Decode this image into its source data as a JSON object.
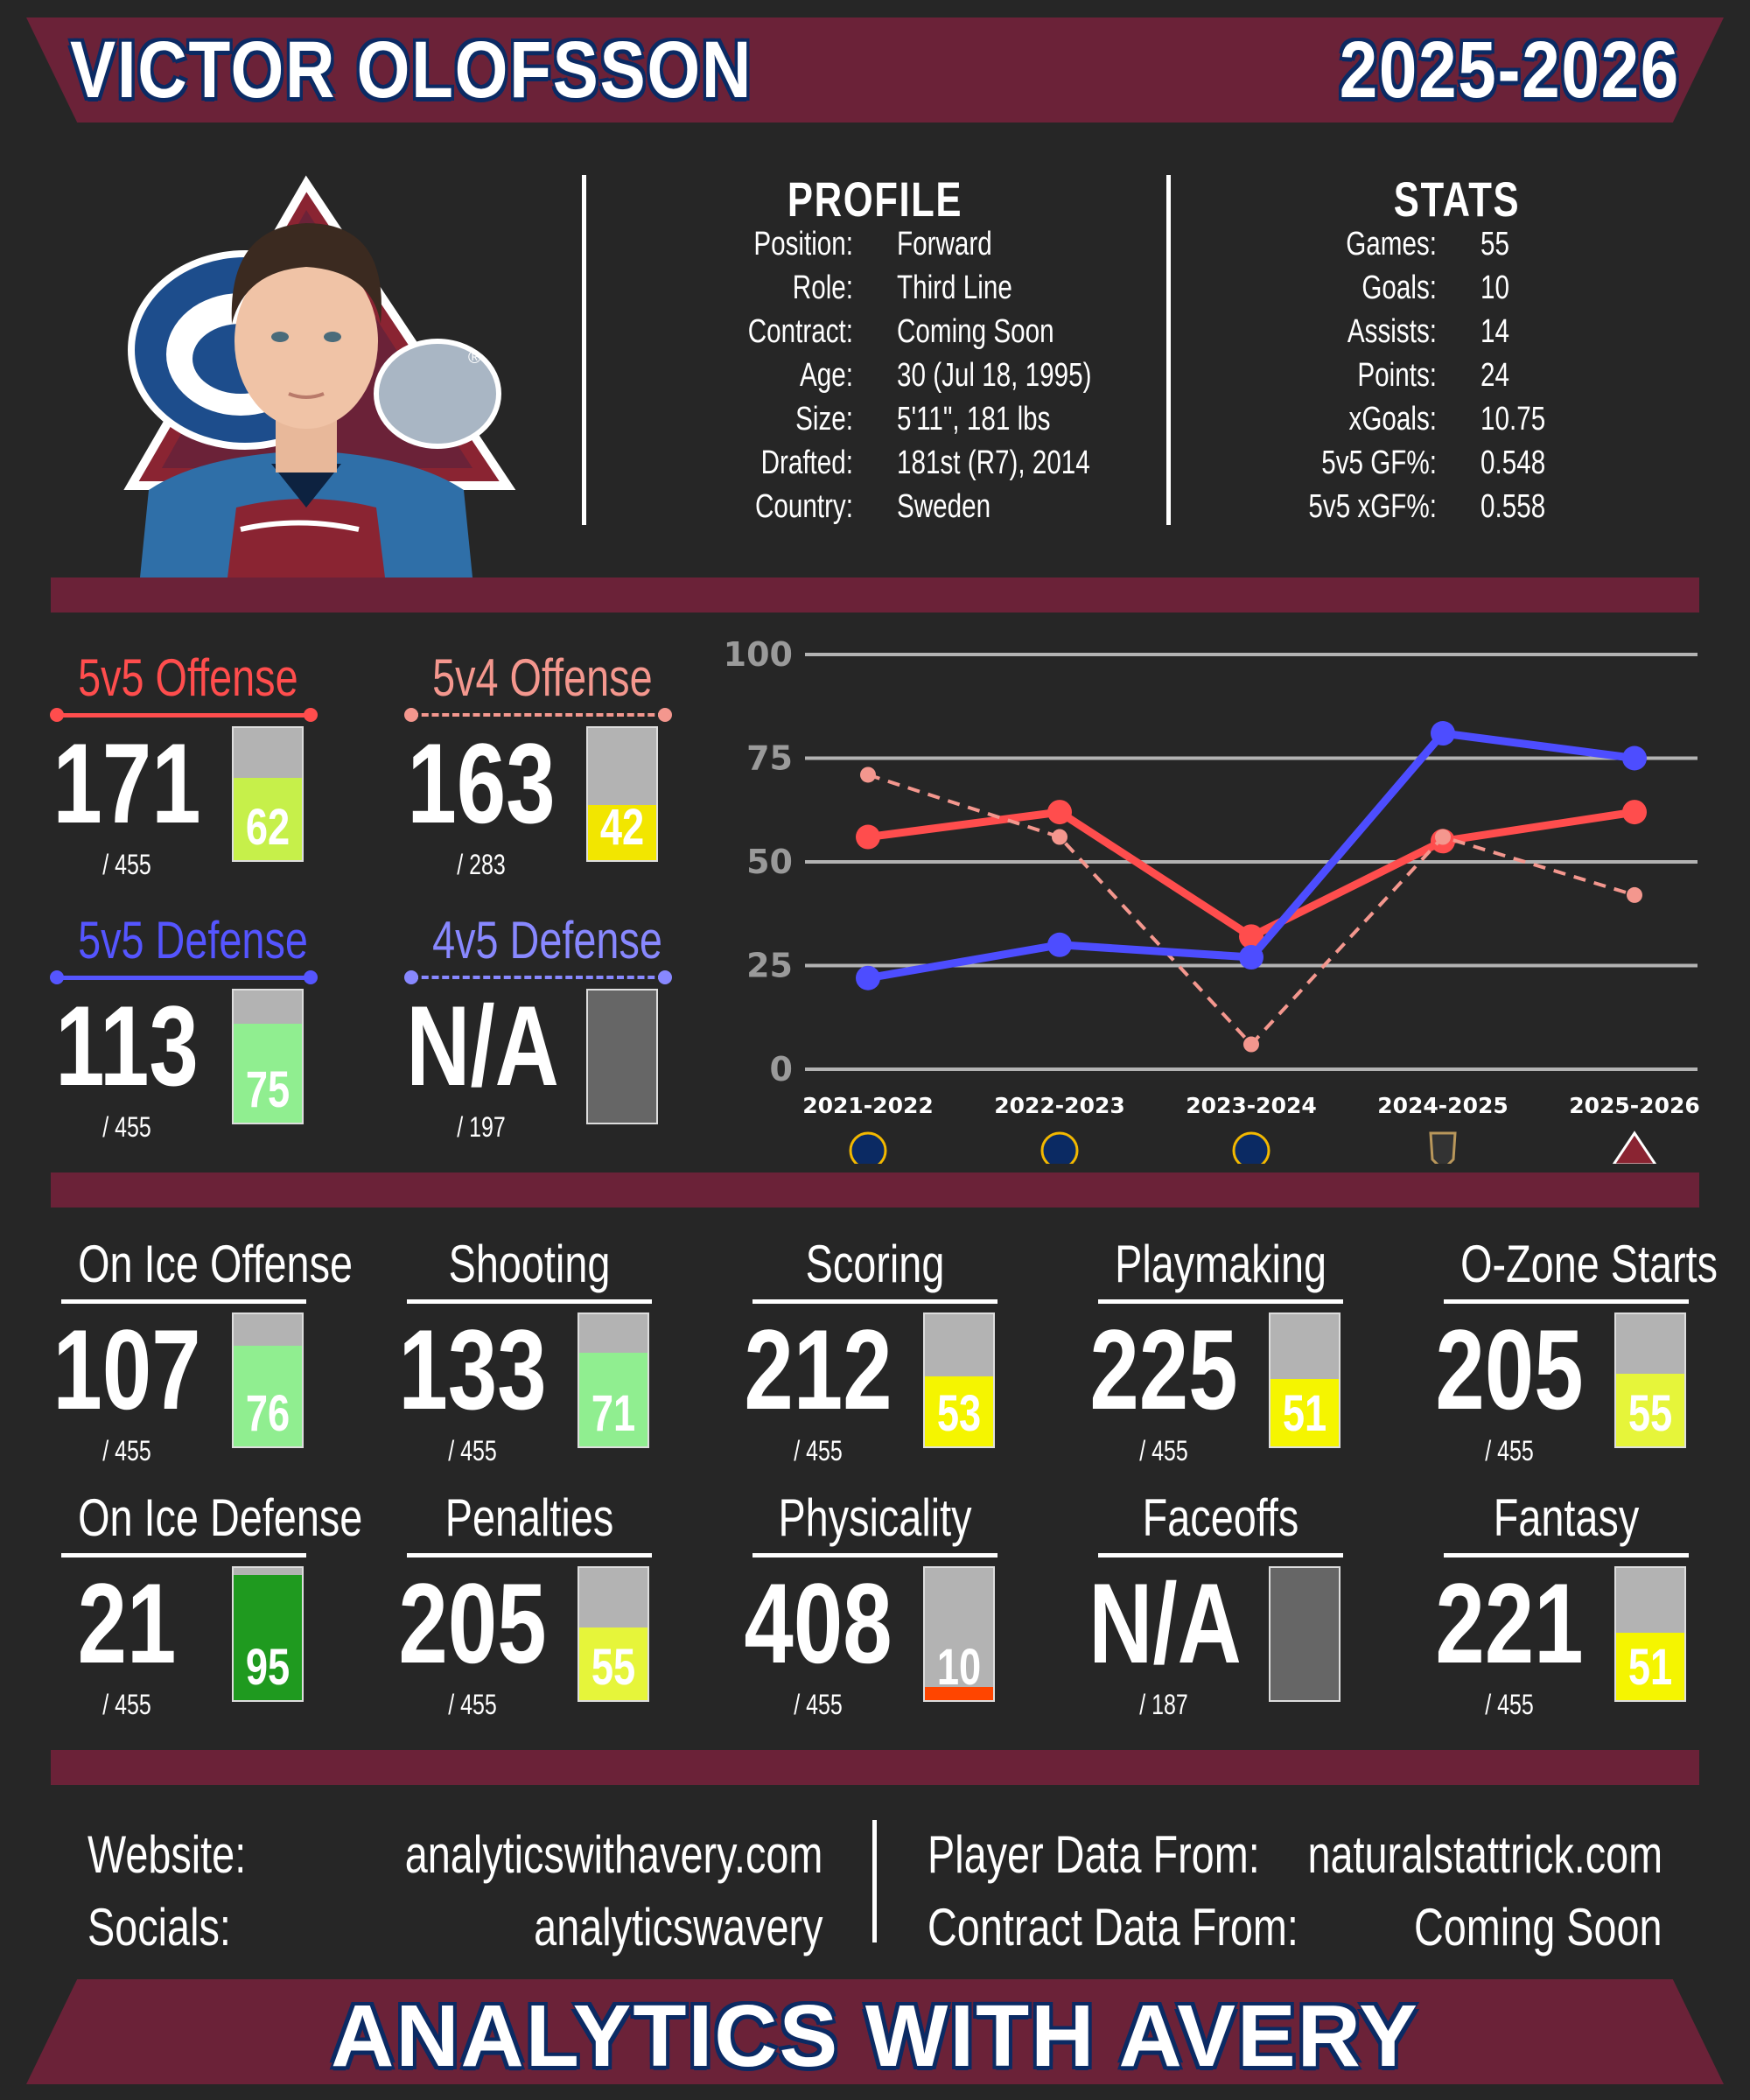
{
  "header": {
    "player_name": "VICTOR OLOFSSON",
    "season": "2025-2026"
  },
  "profile": {
    "heading": "PROFILE",
    "rows": [
      {
        "label": "Position:",
        "value": "Forward"
      },
      {
        "label": "Role:",
        "value": "Third Line"
      },
      {
        "label": "Contract:",
        "value": "Coming Soon"
      },
      {
        "label": "Age:",
        "value": "30 (Jul 18, 1995)"
      },
      {
        "label": "Size:",
        "value": "5'11\", 181 lbs"
      },
      {
        "label": "Drafted:",
        "value": "181st (R7), 2014"
      },
      {
        "label": "Country:",
        "value": "Sweden"
      }
    ]
  },
  "stats": {
    "heading": "STATS",
    "rows": [
      {
        "label": "Games:",
        "value": "55"
      },
      {
        "label": "Goals:",
        "value": "10"
      },
      {
        "label": "Assists:",
        "value": "14"
      },
      {
        "label": "Points:",
        "value": "24"
      },
      {
        "label": "xGoals:",
        "value": "10.75"
      },
      {
        "label": "5v5 GF%:",
        "value": "0.548"
      },
      {
        "label": "5v5 xGF%:",
        "value": "0.558"
      }
    ]
  },
  "situational": [
    {
      "title": "5v5 Offense",
      "rank": "171",
      "total": "/ 455",
      "pct": 62,
      "pct_label": "62",
      "color": "#ff4d4d",
      "line": "solid",
      "bar_color": "#c6f04a"
    },
    {
      "title": "5v4 Offense",
      "rank": "163",
      "total": "/ 283",
      "pct": 42,
      "pct_label": "42",
      "color": "#f4978e",
      "line": "dashed",
      "bar_color": "#f2e600"
    },
    {
      "title": "5v5 Defense",
      "rank": "113",
      "total": "/ 455",
      "pct": 75,
      "pct_label": "75",
      "color": "#5555ff",
      "line": "solid",
      "bar_color": "#90ee90"
    },
    {
      "title": "4v5 Defense",
      "rank": "N/A",
      "total": "/ 197",
      "pct": null,
      "pct_label": "",
      "color": "#8888ff",
      "line": "dashed",
      "bar_color": "#666666"
    }
  ],
  "chart_data": {
    "type": "line",
    "categories": [
      "2021-2022",
      "2022-2023",
      "2023-2024",
      "2024-2025",
      "2025-2026"
    ],
    "team_icons": [
      "sabres-icon",
      "sabres-icon",
      "sabres-icon",
      "golden-knights-icon",
      "avalanche-icon"
    ],
    "ylim": [
      0,
      100
    ],
    "yticks": [
      "0",
      "25",
      "50",
      "75",
      "100"
    ],
    "grid": true,
    "series": [
      {
        "values": [
          56,
          62,
          32,
          55,
          62
        ],
        "color": "#ff4d4d",
        "style": "solid"
      },
      {
        "values": [
          71,
          56,
          6,
          56,
          42
        ],
        "color": "#f4978e",
        "style": "dashed"
      },
      {
        "values": [
          22,
          30,
          27,
          81,
          75
        ],
        "color": "#4d4dff",
        "style": "solid"
      }
    ]
  },
  "metrics": [
    {
      "title": "On Ice Offense",
      "rank": "107",
      "total": "/ 455",
      "pct": 76,
      "pct_label": "76",
      "bar_color": "#90ee90"
    },
    {
      "title": "Shooting",
      "rank": "133",
      "total": "/ 455",
      "pct": 71,
      "pct_label": "71",
      "bar_color": "#90ee90"
    },
    {
      "title": "Scoring",
      "rank": "212",
      "total": "/ 455",
      "pct": 53,
      "pct_label": "53",
      "bar_color": "#f5f500"
    },
    {
      "title": "Playmaking",
      "rank": "225",
      "total": "/ 455",
      "pct": 51,
      "pct_label": "51",
      "bar_color": "#f5f500"
    },
    {
      "title": "O-Zone Starts",
      "rank": "205",
      "total": "/ 455",
      "pct": 55,
      "pct_label": "55",
      "bar_color": "#e6f53a"
    },
    {
      "title": "On Ice Defense",
      "rank": "21",
      "total": "/ 455",
      "pct": 95,
      "pct_label": "95",
      "bar_color": "#1f9a1f"
    },
    {
      "title": "Penalties",
      "rank": "205",
      "total": "/ 455",
      "pct": 55,
      "pct_label": "55",
      "bar_color": "#e6f53a"
    },
    {
      "title": "Physicality",
      "rank": "408",
      "total": "/ 455",
      "pct": 10,
      "pct_label": "10",
      "bar_color": "#ff4500"
    },
    {
      "title": "Faceoffs",
      "rank": "N/A",
      "total": "/ 187",
      "pct": null,
      "pct_label": "",
      "bar_color": "#666666"
    },
    {
      "title": "Fantasy",
      "rank": "221",
      "total": "/ 455",
      "pct": 51,
      "pct_label": "51",
      "bar_color": "#f5f500"
    }
  ],
  "footer": {
    "website_label": "Website:",
    "website_value": "analyticswithavery.com",
    "socials_label": "Socials:",
    "socials_value": "analyticswavery",
    "player_data_label": "Player Data From:",
    "player_data_value": "naturalstattrick.com",
    "contract_data_label": "Contract Data From:",
    "contract_data_value": "Coming Soon"
  },
  "brand": {
    "title": "ANALYTICS WITH AVERY",
    "primary": "#6b2238",
    "bg": "#262626",
    "navy": "#0b2a63"
  }
}
